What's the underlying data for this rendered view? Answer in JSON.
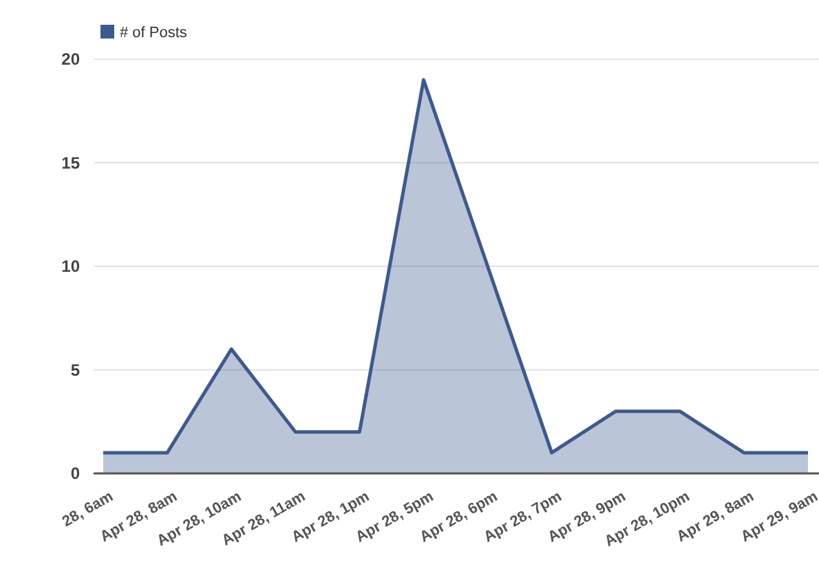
{
  "chart_data": {
    "type": "area",
    "categories": [
      "28, 6am",
      "Apr 28, 8am",
      "Apr 28, 10am",
      "Apr 28, 11am",
      "Apr 28, 1pm",
      "Apr 28, 5pm",
      "Apr 28, 6pm",
      "Apr 28, 7pm",
      "Apr 28, 9pm",
      "Apr 28, 10pm",
      "Apr 29, 8am",
      "Apr 29, 9am"
    ],
    "series": [
      {
        "name": "# of Posts",
        "color": "#3d5a8e",
        "values": [
          1,
          1,
          6,
          2,
          2,
          19,
          10,
          1,
          3,
          3,
          1,
          1
        ]
      }
    ],
    "ylim": [
      0,
      20
    ],
    "yticks": [
      0,
      5,
      10,
      15,
      20
    ],
    "grid": "y",
    "legend": "top left"
  }
}
